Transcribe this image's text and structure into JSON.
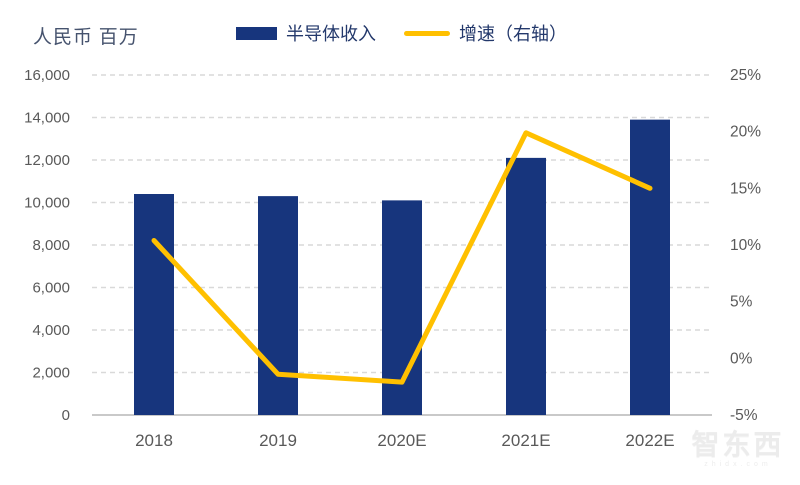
{
  "chart_data": {
    "type": "bar+line combo",
    "categories": [
      "2018",
      "2019",
      "2020E",
      "2021E",
      "2022E"
    ],
    "series": [
      {
        "name": "半导体收入",
        "type": "bar",
        "axis": "left",
        "color": "#17357d",
        "values": [
          10400,
          10300,
          10100,
          12100,
          13900
        ]
      },
      {
        "name": "增速（右轴）",
        "type": "line",
        "axis": "right",
        "color": "#ffc000",
        "values": [
          10.4,
          -1.4,
          -2.1,
          19.9,
          15.0
        ]
      }
    ],
    "left_axis": {
      "label": "人民币 百万",
      "min": 0,
      "max": 16000,
      "step": 2000,
      "tick_values": [
        0,
        2000,
        4000,
        6000,
        8000,
        10000,
        12000,
        14000,
        16000
      ],
      "tick_labels": [
        "0",
        "2,000",
        "4,000",
        "6,000",
        "8,000",
        "10,000",
        "12,000",
        "14,000",
        "16,000"
      ]
    },
    "right_axis": {
      "min": -5,
      "max": 25,
      "step": 5,
      "tick_values": [
        -5,
        0,
        5,
        10,
        15,
        20,
        25
      ],
      "tick_labels": [
        "-5%",
        "0%",
        "5%",
        "10%",
        "15%",
        "20%",
        "25%"
      ]
    },
    "grid": "horizontal dashed",
    "grid_color": "#d9d9d9",
    "baseline_color": "#c9c9c9",
    "tick_text_color": "#595959",
    "legend_position": "top-center"
  },
  "watermark": {
    "text": "智东西",
    "subtext": "zhidx.com"
  }
}
